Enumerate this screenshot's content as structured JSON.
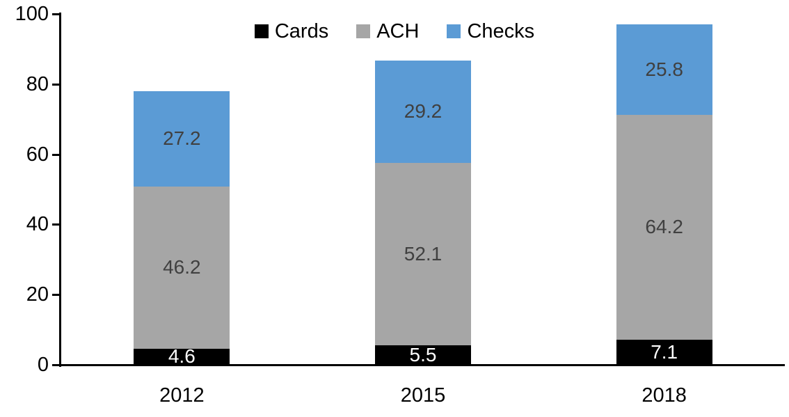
{
  "chart_data": {
    "type": "bar",
    "stacked": true,
    "title": "",
    "categories": [
      "2012",
      "2015",
      "2018"
    ],
    "series": [
      {
        "name": "Cards",
        "color": "#000000",
        "label_color": "#FFFFFF",
        "values": [
          4.6,
          5.5,
          7.1
        ]
      },
      {
        "name": "ACH",
        "color": "#A6A6A6",
        "label_color": "#404040",
        "values": [
          46.2,
          52.1,
          64.2
        ]
      },
      {
        "name": "Checks",
        "color": "#5B9BD5",
        "label_color": "#404040",
        "values": [
          27.2,
          29.2,
          25.8
        ]
      }
    ],
    "totals": [
      78.0,
      86.8,
      97.1
    ],
    "ylim": [
      0,
      100
    ],
    "yticks": [
      0,
      20,
      40,
      60,
      80,
      100
    ],
    "grid": false,
    "legend_position": "top-center",
    "axis_color": "#000000",
    "background_color": "#FFFFFF"
  }
}
